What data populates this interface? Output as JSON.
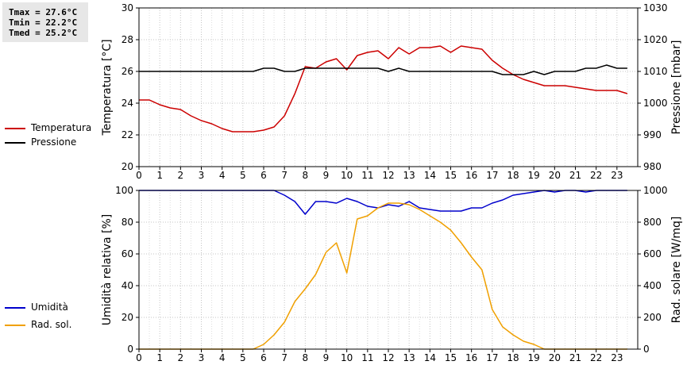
{
  "stats": {
    "tmax": "Tmax = 27.6°C",
    "tmin": "Tmin = 22.2°C",
    "tmed": "Tmed = 25.2°C"
  },
  "legends": {
    "top": [
      {
        "label": "Temperatura",
        "color": "#cc0000"
      },
      {
        "label": "Pressione",
        "color": "#000000"
      }
    ],
    "bottom": [
      {
        "label": "Umidità",
        "color": "#0000cc"
      },
      {
        "label": "Rad. sol.",
        "color": "#f0a000"
      }
    ]
  },
  "chart_data": [
    {
      "type": "line",
      "ylabel": "Temperatura [°C]",
      "y2label": "Pressione [mbar]",
      "xlim": [
        0,
        24
      ],
      "xticks": [
        0,
        1,
        2,
        3,
        4,
        5,
        6,
        7,
        8,
        9,
        10,
        11,
        12,
        13,
        14,
        15,
        16,
        17,
        18,
        19,
        20,
        21,
        22,
        23
      ],
      "ylim": [
        20,
        30
      ],
      "yticks": [
        20,
        22,
        24,
        26,
        28,
        30
      ],
      "y2lim": [
        980,
        1030
      ],
      "y2ticks": [
        980,
        990,
        1000,
        1010,
        1020,
        1030
      ],
      "grid": true,
      "series": [
        {
          "name": "Temperatura",
          "axis": "left",
          "color": "#cc0000",
          "x": [
            0,
            0.5,
            1,
            1.5,
            2,
            2.5,
            3,
            3.5,
            4,
            4.5,
            5,
            5.5,
            6,
            6.5,
            7,
            7.5,
            8,
            8.5,
            9,
            9.5,
            10,
            10.5,
            11,
            11.5,
            12,
            12.5,
            13,
            13.5,
            14,
            14.5,
            15,
            15.5,
            16,
            16.5,
            17,
            17.5,
            18,
            18.5,
            19,
            19.5,
            20,
            20.5,
            21,
            21.5,
            22,
            22.5,
            23,
            23.5
          ],
          "y": [
            24.2,
            24.2,
            23.9,
            23.7,
            23.6,
            23.2,
            22.9,
            22.7,
            22.4,
            22.2,
            22.2,
            22.2,
            22.3,
            22.5,
            23.2,
            24.6,
            26.3,
            26.2,
            26.6,
            26.8,
            26.1,
            27.0,
            27.2,
            27.3,
            26.8,
            27.5,
            27.1,
            27.5,
            27.5,
            27.6,
            27.2,
            27.6,
            27.5,
            27.4,
            26.7,
            26.2,
            25.8,
            25.5,
            25.3,
            25.1,
            25.1,
            25.1,
            25.0,
            24.9,
            24.8,
            24.8,
            24.8,
            24.6
          ]
        },
        {
          "name": "Pressione",
          "axis": "right",
          "color": "#000000",
          "x": [
            0,
            0.5,
            1,
            1.5,
            2,
            2.5,
            3,
            3.5,
            4,
            4.5,
            5,
            5.5,
            6,
            6.5,
            7,
            7.5,
            8,
            8.5,
            9,
            9.5,
            10,
            10.5,
            11,
            11.5,
            12,
            12.5,
            13,
            13.5,
            14,
            14.5,
            15,
            15.5,
            16,
            16.5,
            17,
            17.5,
            18,
            18.5,
            19,
            19.5,
            20,
            20.5,
            21,
            21.5,
            22,
            22.5,
            23,
            23.5
          ],
          "y": [
            1010,
            1010,
            1010,
            1010,
            1010,
            1010,
            1010,
            1010,
            1010,
            1010,
            1010,
            1010,
            1011,
            1011,
            1010,
            1010,
            1011,
            1011,
            1011,
            1011,
            1011,
            1011,
            1011,
            1011,
            1010,
            1011,
            1010,
            1010,
            1010,
            1010,
            1010,
            1010,
            1010,
            1010,
            1010,
            1009,
            1009,
            1009,
            1010,
            1009,
            1010,
            1010,
            1010,
            1011,
            1011,
            1012,
            1011,
            1011
          ]
        }
      ]
    },
    {
      "type": "line",
      "ylabel": "Umidità relativa [%]",
      "y2label": "Rad. solare [W/mq]",
      "xlim": [
        0,
        24
      ],
      "xticks": [
        0,
        1,
        2,
        3,
        4,
        5,
        6,
        7,
        8,
        9,
        10,
        11,
        12,
        13,
        14,
        15,
        16,
        17,
        18,
        19,
        20,
        21,
        22,
        23
      ],
      "ylim": [
        0,
        100
      ],
      "yticks": [
        0,
        20,
        40,
        60,
        80,
        100
      ],
      "y2lim": [
        0,
        1000
      ],
      "y2ticks": [
        0,
        200,
        400,
        600,
        800,
        1000
      ],
      "grid": true,
      "series": [
        {
          "name": "Umidità",
          "axis": "left",
          "color": "#0000cc",
          "x": [
            0,
            0.5,
            1,
            1.5,
            2,
            2.5,
            3,
            3.5,
            4,
            4.5,
            5,
            5.5,
            6,
            6.5,
            7,
            7.5,
            8,
            8.5,
            9,
            9.5,
            10,
            10.5,
            11,
            11.5,
            12,
            12.5,
            13,
            13.5,
            14,
            14.5,
            15,
            15.5,
            16,
            16.5,
            17,
            17.5,
            18,
            18.5,
            19,
            19.5,
            20,
            20.5,
            21,
            21.5,
            22,
            22.5,
            23,
            23.5
          ],
          "y": [
            100,
            100,
            100,
            100,
            100,
            100,
            100,
            100,
            100,
            100,
            100,
            100,
            100,
            100,
            97,
            93,
            85,
            93,
            93,
            92,
            95,
            93,
            90,
            89,
            91,
            90,
            93,
            89,
            88,
            87,
            87,
            87,
            89,
            89,
            92,
            94,
            97,
            98,
            99,
            100,
            99,
            100,
            100,
            99,
            100,
            100,
            100,
            100
          ]
        },
        {
          "name": "Rad. sol.",
          "axis": "right",
          "color": "#f0a000",
          "x": [
            0,
            0.5,
            1,
            1.5,
            2,
            2.5,
            3,
            3.5,
            4,
            4.5,
            5,
            5.5,
            6,
            6.5,
            7,
            7.5,
            8,
            8.5,
            9,
            9.5,
            10,
            10.5,
            11,
            11.5,
            12,
            12.5,
            13,
            13.5,
            14,
            14.5,
            15,
            15.5,
            16,
            16.5,
            17,
            17.5,
            18,
            18.5,
            19,
            19.5,
            20,
            20.5,
            21,
            21.5,
            22,
            22.5,
            23,
            23.5
          ],
          "y": [
            0,
            0,
            0,
            0,
            0,
            0,
            0,
            0,
            0,
            0,
            0,
            0,
            30,
            90,
            170,
            300,
            380,
            470,
            610,
            670,
            480,
            820,
            840,
            890,
            920,
            920,
            910,
            880,
            840,
            800,
            750,
            670,
            580,
            500,
            250,
            140,
            90,
            50,
            30,
            0,
            0,
            0,
            0,
            0,
            0,
            0,
            0,
            0
          ]
        }
      ]
    }
  ]
}
